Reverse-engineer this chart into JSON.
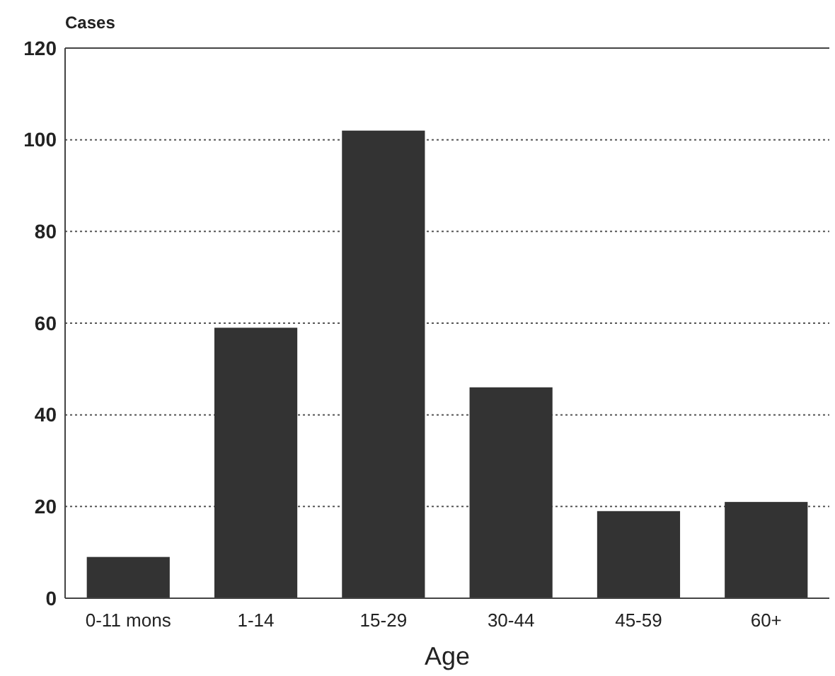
{
  "chart_data": {
    "type": "bar",
    "ylabel": "Cases",
    "xlabel": "Age",
    "categories": [
      "0-11 mons",
      "1-14",
      "15-29",
      "30-44",
      "45-59",
      "60+"
    ],
    "values": [
      9,
      59,
      102,
      46,
      19,
      21
    ],
    "color": "#333333",
    "ylim": [
      0,
      120
    ],
    "yticks": [
      0,
      20,
      40,
      60,
      80,
      100,
      120
    ],
    "grid": "y"
  }
}
